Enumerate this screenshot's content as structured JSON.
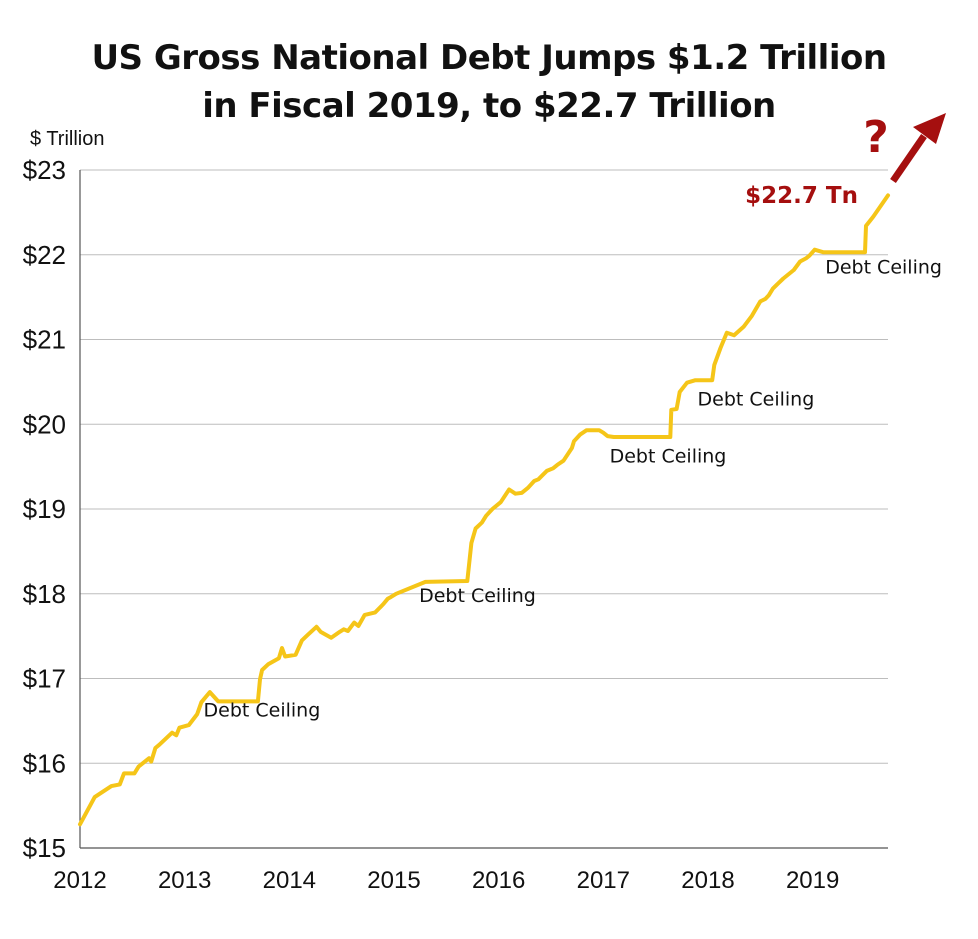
{
  "title_line1": "US Gross National Debt Jumps $1.2 Trillion",
  "title_line2": "in Fiscal 2019, to $22.7 Trillion",
  "colors": {
    "line": "#F5C518",
    "accent": "#A50F0F",
    "grid": "#BDBDBD",
    "text": "#111111"
  },
  "chart_data": {
    "type": "line",
    "title": "US Gross National Debt Jumps $1.2 Trillion in Fiscal 2019, to $22.7 Trillion",
    "ylabel": "$ Trillion",
    "xlabel": "",
    "xlim": [
      2012.0,
      2019.72
    ],
    "ylim": [
      15,
      23
    ],
    "x_ticks": [
      2012,
      2013,
      2014,
      2015,
      2016,
      2017,
      2018,
      2019
    ],
    "x_tick_labels": [
      "2012",
      "2013",
      "2014",
      "2015",
      "2016",
      "2017",
      "2018",
      "2019"
    ],
    "y_ticks": [
      15,
      16,
      17,
      18,
      19,
      20,
      21,
      22,
      23
    ],
    "y_tick_labels": [
      "$15",
      "$16",
      "$17",
      "$18",
      "$19",
      "$20",
      "$21",
      "$22",
      "$23"
    ],
    "grid": "horizontal",
    "series": [
      {
        "x": [
          2012.0,
          2012.14,
          2012.3,
          2012.38,
          2012.42,
          2012.52,
          2012.56,
          2012.66,
          2012.68,
          2012.72,
          2012.76,
          2012.88,
          2012.92,
          2012.95,
          2013.04,
          2013.12,
          2013.16,
          2013.24,
          2013.32,
          2013.5,
          2013.7,
          2013.72,
          2013.74,
          2013.8,
          2013.9,
          2013.93,
          2013.96,
          2014.06,
          2014.12,
          2014.18,
          2014.26,
          2014.3,
          2014.4,
          2014.48,
          2014.52,
          2014.56,
          2014.62,
          2014.66,
          2014.72,
          2014.82,
          2014.9,
          2014.94,
          2014.97,
          2015.02,
          2015.3,
          2015.7,
          2015.74,
          2015.78,
          2015.84,
          2015.88,
          2015.94,
          2016.02,
          2016.1,
          2016.16,
          2016.22,
          2016.28,
          2016.34,
          2016.38,
          2016.42,
          2016.46,
          2016.52,
          2016.56,
          2016.62,
          2016.7,
          2016.72,
          2016.78,
          2016.84,
          2016.96,
          2017.0,
          2017.04,
          2017.1,
          2017.2,
          2017.35,
          2017.5,
          2017.64,
          2017.65,
          2017.7,
          2017.73,
          2017.8,
          2017.88,
          2017.92,
          2018.04,
          2018.06,
          2018.12,
          2018.18,
          2018.25,
          2018.34,
          2018.42,
          2018.5,
          2018.55,
          2018.58,
          2018.62,
          2018.66,
          2018.72,
          2018.82,
          2018.88,
          2018.94,
          2018.97,
          2019.02,
          2019.1,
          2019.5,
          2019.51,
          2019.58,
          2019.72
        ],
        "y": [
          15.28,
          15.6,
          15.73,
          15.75,
          15.88,
          15.88,
          15.96,
          16.06,
          16.02,
          16.18,
          16.22,
          16.36,
          16.33,
          16.42,
          16.45,
          16.58,
          16.72,
          16.84,
          16.73,
          16.73,
          16.73,
          16.99,
          17.1,
          17.17,
          17.24,
          17.36,
          17.26,
          17.28,
          17.45,
          17.52,
          17.61,
          17.55,
          17.48,
          17.55,
          17.58,
          17.56,
          17.66,
          17.62,
          17.75,
          17.78,
          17.88,
          17.94,
          17.96,
          18.0,
          18.14,
          18.15,
          18.6,
          18.77,
          18.84,
          18.92,
          19.0,
          19.08,
          19.23,
          19.18,
          19.19,
          19.25,
          19.33,
          19.35,
          19.4,
          19.45,
          19.48,
          19.52,
          19.57,
          19.72,
          19.8,
          19.88,
          19.93,
          19.93,
          19.9,
          19.86,
          19.85,
          19.85,
          19.85,
          19.85,
          19.85,
          20.17,
          20.18,
          20.38,
          20.49,
          20.52,
          20.52,
          20.52,
          20.7,
          20.9,
          21.08,
          21.05,
          21.15,
          21.28,
          21.45,
          21.48,
          21.52,
          21.6,
          21.65,
          21.72,
          21.82,
          21.92,
          21.96,
          21.99,
          22.06,
          22.03,
          22.03,
          22.34,
          22.45,
          22.7
        ]
      }
    ],
    "annotations": [
      {
        "text": "Debt Ceiling",
        "x": 2013.18,
        "y": 16.55
      },
      {
        "text": "Debt Ceiling",
        "x": 2015.24,
        "y": 17.9
      },
      {
        "text": "Debt Ceiling",
        "x": 2017.06,
        "y": 19.55
      },
      {
        "text": "Debt Ceiling",
        "x": 2017.9,
        "y": 20.22
      },
      {
        "text": "Debt Ceiling",
        "x": 2019.12,
        "y": 21.78
      }
    ],
    "callout_label": "$22.7 Tn",
    "callout_symbol": "?"
  }
}
